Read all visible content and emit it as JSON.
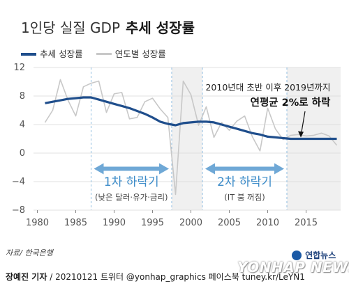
{
  "title": {
    "prefix": "1인당 실질 GDP",
    "emphasis": "추세 성장률"
  },
  "legend": [
    {
      "label": "추세 성장률",
      "color": "#1f4e8c"
    },
    {
      "label": "연도별 성장률",
      "color": "#c8c8c8"
    }
  ],
  "annotation": {
    "line1": "2010년대 초반 이후 2019년까지",
    "line2_bold": "연평균 2%로 하락"
  },
  "periods": [
    {
      "label": "1차 하락기",
      "sub": "(낮은 달러·유가·금리)",
      "start": 1987,
      "end": 1997.5
    },
    {
      "label": "2차 하락기",
      "sub": "(IT 붐 꺼짐)",
      "start": 2001.5,
      "end": 2012.5
    }
  ],
  "source": "자료/ 한국은행",
  "credit": {
    "name": "장예진 기자",
    "rest": " / 20210121 트위터 @yonhap_graphics  페이스북 tuney.kr/LeYN1"
  },
  "logo": {
    "kr": "연합뉴스",
    "en": "YONHAP NEWS"
  },
  "chart_data": {
    "type": "line",
    "ylim": [
      -8,
      12
    ],
    "xlim": [
      1979.5,
      2019.5
    ],
    "yticks": [
      12,
      8,
      4,
      0,
      -4,
      -8
    ],
    "yticklabels": [
      "12",
      "8",
      "4",
      "0",
      "−4",
      "−8"
    ],
    "xticks": [
      1980,
      1985,
      1990,
      1995,
      2000,
      2005,
      2010,
      2015
    ],
    "shaded_ranges": [
      [
        1997.5,
        2001.5
      ],
      [
        2012.5,
        2019.5
      ]
    ],
    "grid": true,
    "legend_position": "top-left",
    "series": [
      {
        "name": "추세 성장률",
        "color": "#1f4e8c",
        "x": [
          1981,
          1982,
          1983,
          1984,
          1985,
          1986,
          1987,
          1988,
          1989,
          1990,
          1991,
          1992,
          1993,
          1994,
          1995,
          1996,
          1997,
          1998,
          1999,
          2000,
          2001,
          2002,
          2003,
          2004,
          2005,
          2006,
          2007,
          2008,
          2009,
          2010,
          2011,
          2012,
          2013,
          2014,
          2015,
          2016,
          2017,
          2018,
          2019
        ],
        "values": [
          7.0,
          7.2,
          7.4,
          7.6,
          7.7,
          7.8,
          7.8,
          7.5,
          7.2,
          6.9,
          6.6,
          6.3,
          5.9,
          5.5,
          5.0,
          4.4,
          4.1,
          3.9,
          4.2,
          4.3,
          4.4,
          4.4,
          4.3,
          4.0,
          3.7,
          3.4,
          3.1,
          2.8,
          2.6,
          2.3,
          2.2,
          2.1,
          2.0,
          2.0,
          2.0,
          2.0,
          2.0,
          2.0,
          2.0
        ]
      },
      {
        "name": "연도별 성장률",
        "color": "#c8c8c8",
        "x": [
          1981,
          1982,
          1983,
          1984,
          1985,
          1986,
          1987,
          1988,
          1989,
          1990,
          1991,
          1992,
          1993,
          1994,
          1995,
          1996,
          1997,
          1998,
          1999,
          2000,
          2001,
          2002,
          2003,
          2004,
          2005,
          2006,
          2007,
          2008,
          2009,
          2010,
          2011,
          2012,
          2013,
          2014,
          2015,
          2016,
          2017,
          2018,
          2019
        ],
        "values": [
          4.3,
          6.0,
          10.3,
          7.4,
          5.2,
          9.3,
          9.8,
          10.1,
          5.7,
          8.3,
          8.5,
          4.8,
          5.0,
          7.2,
          7.7,
          6.2,
          5.0,
          -5.8,
          10.1,
          8.2,
          3.9,
          6.5,
          2.2,
          4.3,
          3.2,
          4.5,
          5.2,
          2.3,
          0.3,
          6.3,
          3.4,
          1.9,
          2.5,
          2.6,
          2.4,
          2.5,
          2.8,
          2.4,
          1.1
        ]
      }
    ]
  }
}
